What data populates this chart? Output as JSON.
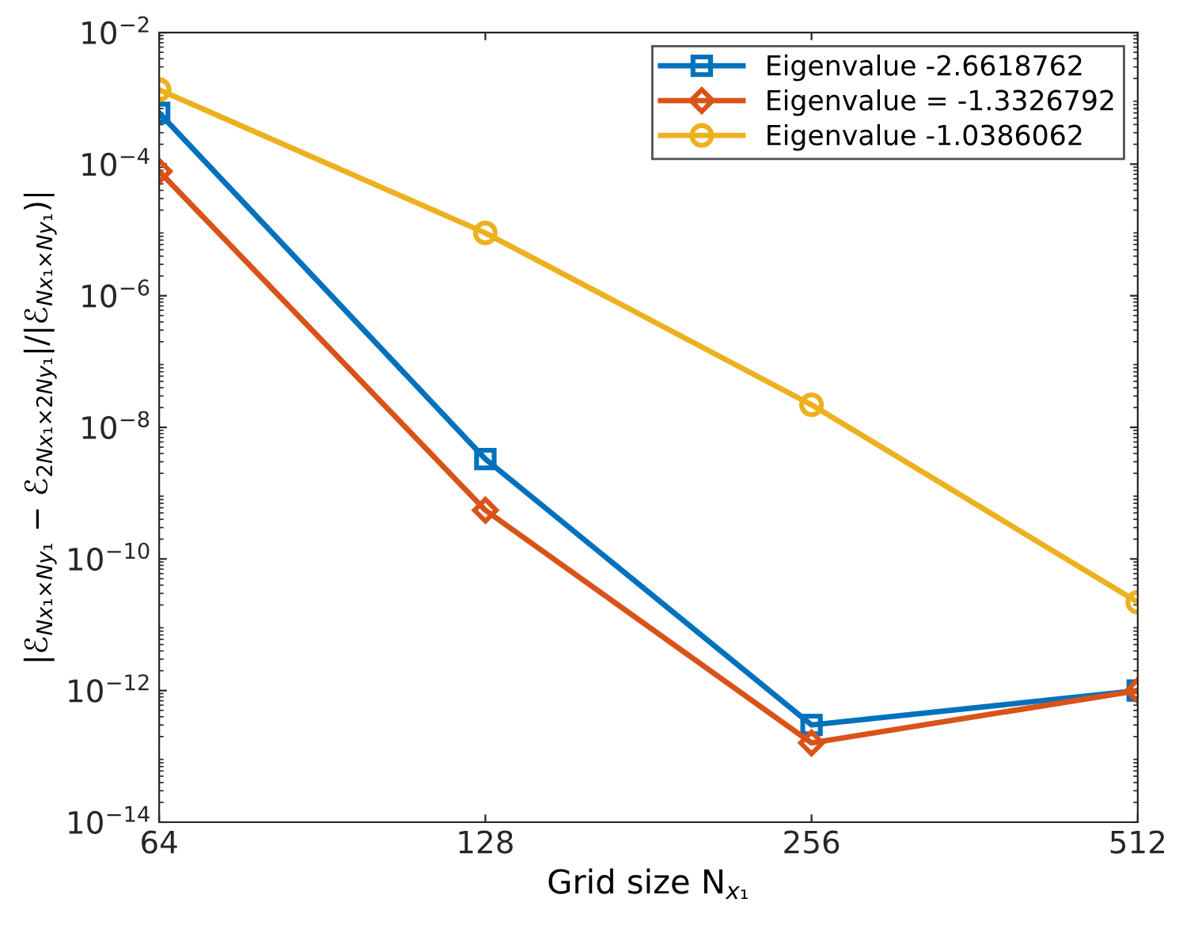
{
  "chart_data": {
    "type": "line",
    "x": [
      64,
      128,
      256,
      512
    ],
    "xlabel": "Grid size N$_{x₁}$",
    "ylabel": "|ℰ$_{Nx₁×Ny₁}$ − ℰ$_{2Nx₁×2Ny₁}$|/|ℰ$_{Nx₁×Ny₁}$)|",
    "log": "xy",
    "xlim": [
      64,
      512
    ],
    "xticks": [
      64,
      128,
      256,
      512
    ],
    "ylim": [
      1e-14,
      0.01
    ],
    "yticks": [
      {
        "value": 1e-14,
        "label": "10$^{−14}$"
      },
      {
        "value": 1e-12,
        "label": "10$^{−12}$"
      },
      {
        "value": 1e-10,
        "label": "10$^{−10}$"
      },
      {
        "value": 1e-08,
        "label": "10$^{−8}$"
      },
      {
        "value": 1e-06,
        "label": "10$^{−6}$"
      },
      {
        "value": 0.0001,
        "label": "10$^{−4}$"
      },
      {
        "value": 0.01,
        "label": "10$^{−2}$"
      }
    ],
    "grid": false,
    "legend": "top right",
    "line_style": "solid",
    "series": [
      {
        "name": "Eigenvalue -2.6618762",
        "color": "#0072bd",
        "marker": "square",
        "values": [
          0.0006,
          3.3e-09,
          3e-13,
          1e-12
        ]
      },
      {
        "name": "Eigenvalue = -1.3326792",
        "color": "#d95319",
        "marker": "diamond",
        "values": [
          7.8e-05,
          5.5e-10,
          1.6e-13,
          1e-12
        ]
      },
      {
        "name": "Eigenvalue -1.0386062",
        "color": "#edb120",
        "marker": "circle",
        "values": [
          0.00135,
          9e-06,
          2.2e-08,
          2.2e-11
        ]
      }
    ]
  }
}
